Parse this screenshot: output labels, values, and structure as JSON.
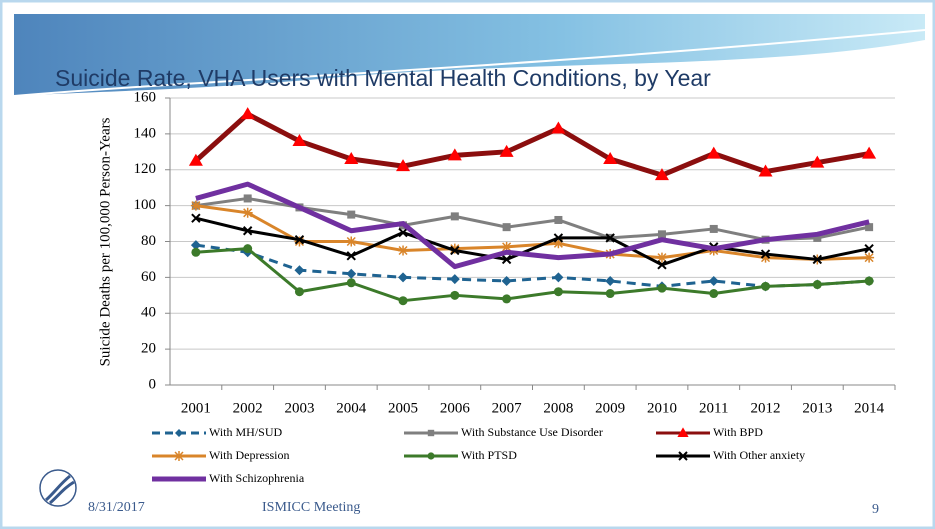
{
  "chart_data": {
    "type": "line",
    "title": "Suicide Rate, VHA Users with Mental Health Conditions, by Year",
    "y_label": "Suicide Deaths per 100,000 Person-Years",
    "categories": [
      "2001",
      "2002",
      "2003",
      "2004",
      "2005",
      "2006",
      "2007",
      "2008",
      "2009",
      "2010",
      "2011",
      "2012",
      "2013",
      "2014"
    ],
    "ylim": [
      0,
      160
    ],
    "yticks": [
      0,
      20,
      40,
      60,
      80,
      100,
      120,
      140,
      160
    ],
    "grid": true,
    "series": [
      {
        "name": "With MH/SUD",
        "color": "#1f6391",
        "marker": "diamond",
        "dashed": true,
        "values": [
          78,
          74,
          64,
          62,
          60,
          59,
          58,
          60,
          58,
          55,
          58,
          55,
          56,
          58
        ]
      },
      {
        "name": "With Substance Use Disorder",
        "color": "#7f7f7f",
        "marker": "square",
        "dashed": false,
        "values": [
          100,
          104,
          99,
          95,
          89,
          94,
          88,
          92,
          82,
          84,
          87,
          81,
          82,
          88
        ]
      },
      {
        "name": "With BPD",
        "color": "#8b0e0e",
        "marker_color": "#ff0000",
        "marker": "triangle",
        "dashed": false,
        "values": [
          125,
          151,
          136,
          126,
          122,
          128,
          130,
          143,
          126,
          117,
          129,
          119,
          124,
          129
        ]
      },
      {
        "name": "With Depression",
        "color": "#d9852a",
        "marker": "star",
        "dashed": false,
        "values": [
          100,
          96,
          80,
          80,
          75,
          76,
          77,
          79,
          73,
          71,
          75,
          71,
          70,
          71
        ]
      },
      {
        "name": "With PTSD",
        "color": "#3c7a2a",
        "marker": "circle",
        "dashed": false,
        "values": [
          74,
          76,
          52,
          57,
          47,
          50,
          48,
          52,
          51,
          54,
          51,
          55,
          56,
          58
        ]
      },
      {
        "name": "With Other anxiety",
        "color": "#000000",
        "marker": "x",
        "dashed": false,
        "values": [
          93,
          86,
          81,
          72,
          85,
          75,
          70,
          82,
          82,
          67,
          77,
          73,
          70,
          76
        ]
      },
      {
        "name": "With Schizophrenia",
        "color": "#7030a0",
        "marker": "none",
        "dashed": false,
        "values": [
          104,
          112,
          99,
          86,
          90,
          66,
          74,
          71,
          73,
          81,
          76,
          81,
          84,
          91
        ]
      }
    ]
  },
  "footer": {
    "date": "8/31/2017",
    "event": "ISMICC Meeting",
    "page": "9"
  }
}
